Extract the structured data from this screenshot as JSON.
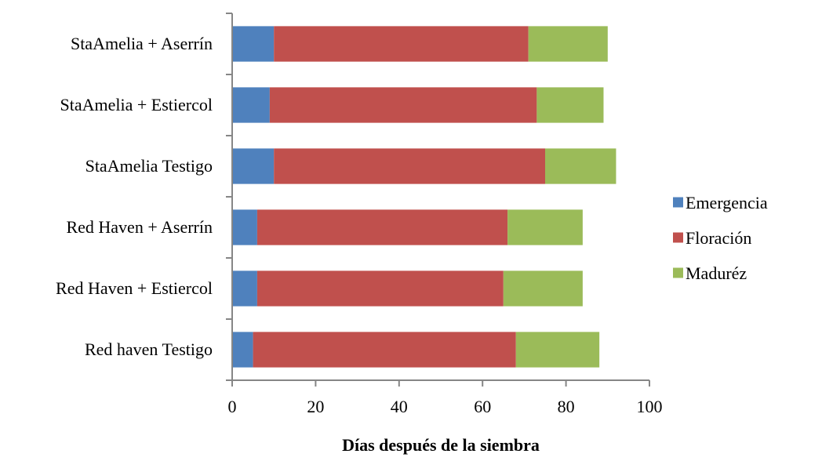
{
  "chart_data": {
    "type": "bar",
    "orientation": "horizontal",
    "stacked": true,
    "title": "",
    "xlabel": "Días después de la siembra",
    "ylabel": "",
    "xlim": [
      0,
      100
    ],
    "xticks": [
      0,
      20,
      40,
      60,
      80,
      100
    ],
    "grid": false,
    "legend_position": "right",
    "categories": [
      "StaAmelia + Aserrín",
      "StaAmelia + Estiercol",
      "StaAmelia Testigo",
      "Red Haven + Aserrín",
      "Red Haven + Estiercol",
      "Red haven Testigo"
    ],
    "series": [
      {
        "name": "Emergencia",
        "color": "#4F81BD",
        "values": [
          10,
          9,
          10,
          6,
          6,
          5
        ]
      },
      {
        "name": "Floración",
        "color": "#C0504D",
        "values": [
          61,
          64,
          65,
          60,
          59,
          63
        ]
      },
      {
        "name": "Maduréz",
        "color": "#9BBB59",
        "values": [
          19,
          16,
          17,
          18,
          19,
          20
        ]
      }
    ]
  }
}
